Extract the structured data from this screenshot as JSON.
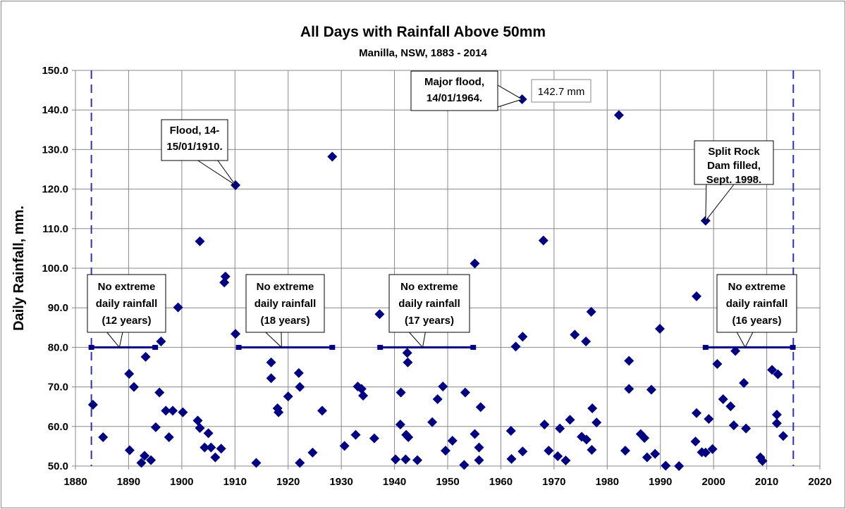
{
  "chart_data": {
    "type": "scatter",
    "title": "All Days with Rainfall Above 50mm",
    "subtitle": "Manilla, NSW, 1883 - 2014",
    "xlabel": "",
    "ylabel": "Daily Rainfall, mm.",
    "xlim": [
      1880,
      2020
    ],
    "ylim": [
      50,
      150
    ],
    "xticks": [
      "1880",
      "1890",
      "1900",
      "1910",
      "1920",
      "1930",
      "1940",
      "1950",
      "1960",
      "1970",
      "1980",
      "1990",
      "2000",
      "2010",
      "2020"
    ],
    "yticks": [
      "50.0",
      "60.0",
      "70.0",
      "80.0",
      "90.0",
      "100.0",
      "110.0",
      "120.0",
      "130.0",
      "140.0",
      "150.0"
    ],
    "grid": true,
    "marker_color": "#000080",
    "record_bounds": [
      1883,
      2015
    ],
    "points": [
      [
        1883.3,
        65.5
      ],
      [
        1885.2,
        57.3
      ],
      [
        1890.1,
        73.3
      ],
      [
        1890.2,
        54.0
      ],
      [
        1891.0,
        70.0
      ],
      [
        1893.2,
        77.6
      ],
      [
        1892.4,
        50.8
      ],
      [
        1893.0,
        52.6
      ],
      [
        1894.2,
        51.5
      ],
      [
        1895.1,
        59.8
      ],
      [
        1896.1,
        81.5
      ],
      [
        1895.8,
        68.6
      ],
      [
        1897.0,
        64.0
      ],
      [
        1898.3,
        64.0
      ],
      [
        1897.6,
        57.3
      ],
      [
        1899.3,
        90.1
      ],
      [
        1900.2,
        63.6
      ],
      [
        1903.0,
        61.5
      ],
      [
        1903.4,
        59.6
      ],
      [
        1903.4,
        106.8
      ],
      [
        1905.0,
        58.3
      ],
      [
        1904.3,
        54.7
      ],
      [
        1905.5,
        54.7
      ],
      [
        1906.3,
        52.2
      ],
      [
        1907.4,
        54.4
      ],
      [
        1908.2,
        97.9
      ],
      [
        1908.0,
        96.4
      ],
      [
        1910.1,
        121.0
      ],
      [
        1910.1,
        83.4
      ],
      [
        1914.0,
        50.8
      ],
      [
        1916.8,
        76.2
      ],
      [
        1916.8,
        72.2
      ],
      [
        1918.0,
        64.6
      ],
      [
        1918.2,
        63.6
      ],
      [
        1920.0,
        67.6
      ],
      [
        1922.0,
        73.5
      ],
      [
        1922.2,
        70.0
      ],
      [
        1922.2,
        50.8
      ],
      [
        1924.6,
        53.4
      ],
      [
        1926.4,
        64.0
      ],
      [
        1928.3,
        128.2
      ],
      [
        1930.6,
        55.1
      ],
      [
        1932.7,
        57.9
      ],
      [
        1933.1,
        70.1
      ],
      [
        1933.8,
        69.5
      ],
      [
        1934.1,
        67.8
      ],
      [
        1936.2,
        57.0
      ],
      [
        1937.2,
        88.4
      ],
      [
        1940.2,
        51.7
      ],
      [
        1941.1,
        60.5
      ],
      [
        1941.2,
        68.6
      ],
      [
        1942.1,
        51.7
      ],
      [
        1942.2,
        57.9
      ],
      [
        1942.6,
        57.3
      ],
      [
        1942.4,
        78.6
      ],
      [
        1942.5,
        76.2
      ],
      [
        1944.3,
        51.5
      ],
      [
        1947.1,
        61.1
      ],
      [
        1948.1,
        66.9
      ],
      [
        1949.1,
        70.1
      ],
      [
        1949.6,
        53.9
      ],
      [
        1950.9,
        56.4
      ],
      [
        1953.1,
        50.3
      ],
      [
        1953.3,
        68.6
      ],
      [
        1955.1,
        101.2
      ],
      [
        1955.1,
        58.1
      ],
      [
        1955.9,
        54.7
      ],
      [
        1955.9,
        51.5
      ],
      [
        1956.2,
        64.9
      ],
      [
        1961.9,
        58.9
      ],
      [
        1962.0,
        51.8
      ],
      [
        1962.8,
        80.2
      ],
      [
        1964.0,
        142.7
      ],
      [
        1964.1,
        82.7
      ],
      [
        1964.1,
        53.7
      ],
      [
        1968.0,
        107.0
      ],
      [
        1968.2,
        60.5
      ],
      [
        1969.0,
        53.9
      ],
      [
        1971.1,
        59.5
      ],
      [
        1970.7,
        52.5
      ],
      [
        1972.2,
        51.4
      ],
      [
        1973.0,
        61.7
      ],
      [
        1973.9,
        83.2
      ],
      [
        1975.2,
        57.4
      ],
      [
        1976.1,
        56.7
      ],
      [
        1976.0,
        81.5
      ],
      [
        1977.0,
        89.0
      ],
      [
        1977.2,
        64.6
      ],
      [
        1977.1,
        54.1
      ],
      [
        1978.0,
        61.0
      ],
      [
        1982.2,
        138.7
      ],
      [
        1984.1,
        76.6
      ],
      [
        1984.1,
        69.5
      ],
      [
        1983.4,
        53.9
      ],
      [
        1986.3,
        58.1
      ],
      [
        1987.0,
        57.1
      ],
      [
        1987.5,
        52.2
      ],
      [
        1988.3,
        69.3
      ],
      [
        1989.0,
        53.1
      ],
      [
        1989.9,
        84.7
      ],
      [
        1991.0,
        50.1
      ],
      [
        1993.5,
        50.0
      ],
      [
        1996.8,
        92.9
      ],
      [
        1996.8,
        63.4
      ],
      [
        1996.6,
        56.2
      ],
      [
        1997.8,
        53.5
      ],
      [
        1998.5,
        53.4
      ],
      [
        1998.5,
        112.0
      ],
      [
        1999.1,
        61.9
      ],
      [
        1999.8,
        54.3
      ],
      [
        2000.7,
        75.8
      ],
      [
        2001.8,
        66.9
      ],
      [
        2003.2,
        65.1
      ],
      [
        2004.1,
        79.1
      ],
      [
        2003.8,
        60.3
      ],
      [
        2005.7,
        71.0
      ],
      [
        2006.1,
        59.5
      ],
      [
        2008.8,
        52.2
      ],
      [
        2009.2,
        51.3
      ],
      [
        2011.0,
        74.3
      ],
      [
        2012.1,
        73.2
      ],
      [
        2011.9,
        63.0
      ],
      [
        2011.9,
        60.8
      ],
      [
        2013.1,
        57.6
      ]
    ],
    "gaps": [
      {
        "from": 1883,
        "to": 1895,
        "value": 80,
        "label": [
          "No extreme",
          "daily rainfall",
          "(12 years)"
        ]
      },
      {
        "from": 1910.7,
        "to": 1928.3,
        "value": 80,
        "label": [
          "No extreme",
          "daily rainfall",
          "(18 years)"
        ]
      },
      {
        "from": 1937.3,
        "to": 1954.8,
        "value": 80,
        "label": [
          "No extreme",
          "daily rainfall",
          "(17 years)"
        ]
      },
      {
        "from": 1998.5,
        "to": 2014.9,
        "value": 80,
        "label": [
          "No extreme",
          "daily rainfall",
          "(16 years)"
        ]
      }
    ],
    "annotations": [
      {
        "x": 1910.1,
        "y": 121.0,
        "label": [
          "Flood, 14-",
          "15/01/1910."
        ]
      },
      {
        "x": 1964.0,
        "y": 142.7,
        "label": [
          "Major flood,",
          "14/01/1964."
        ]
      },
      {
        "x": 1998.5,
        "y": 112.0,
        "label": [
          "Split Rock",
          "Dam filled,",
          "Sept. 1998."
        ]
      }
    ],
    "value_label": "142.7 mm"
  }
}
